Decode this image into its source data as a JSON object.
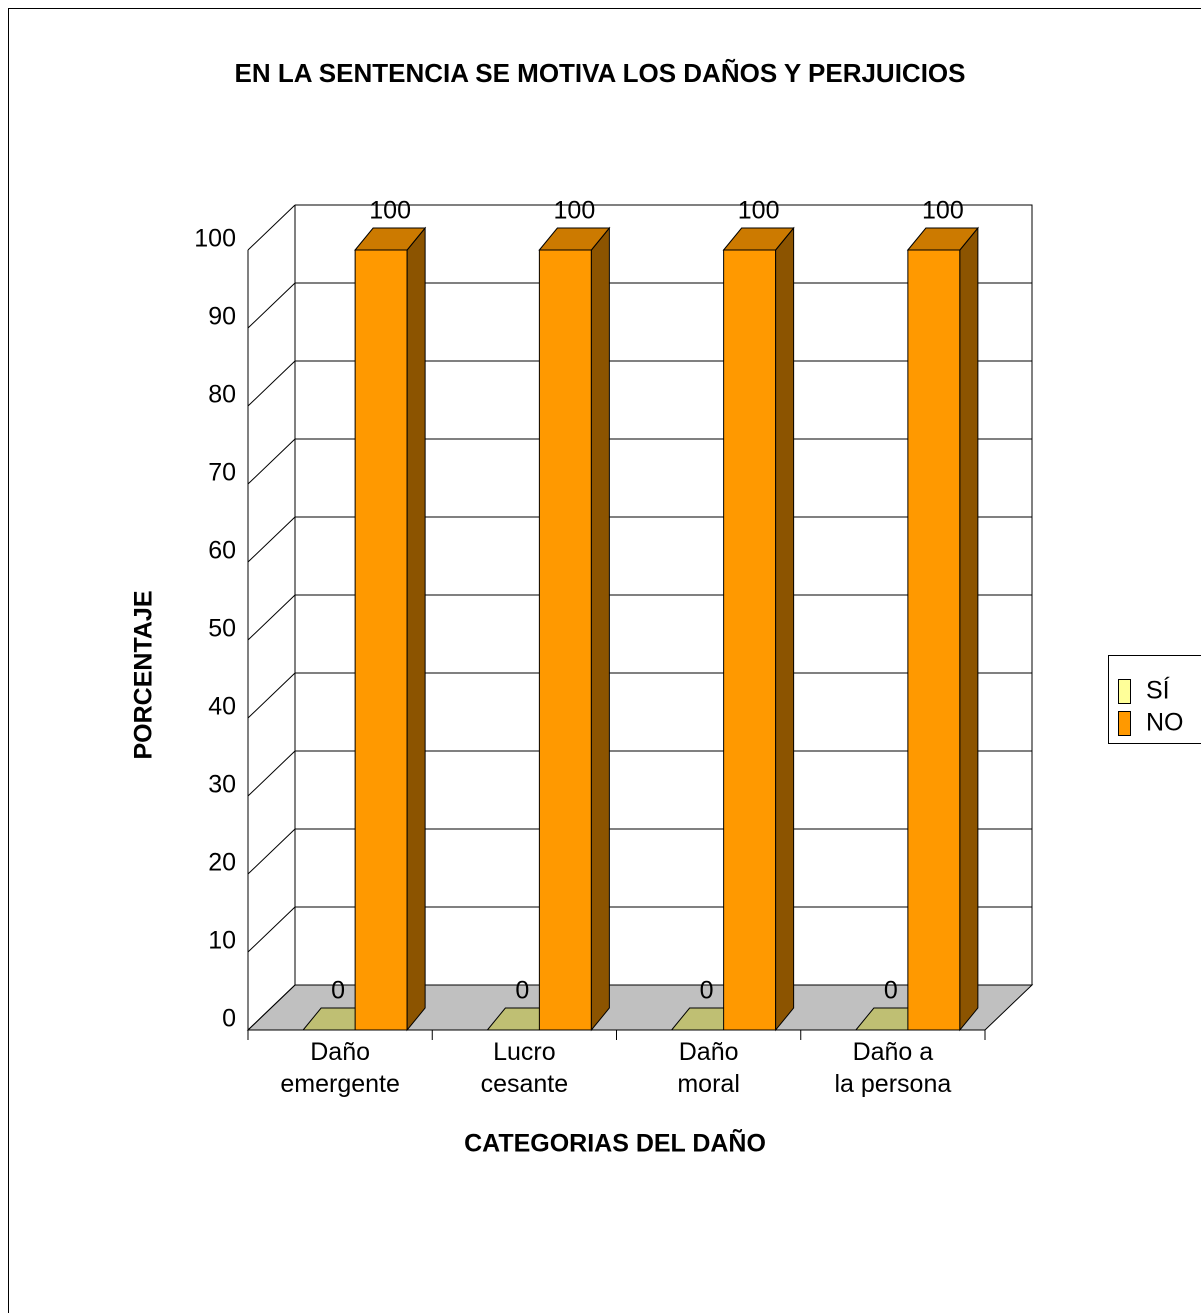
{
  "chart_data": {
    "type": "bar3d",
    "title": "EN LA SENTENCIA SE MOTIVA LOS DAÑOS Y PERJUICIOS",
    "x_label": "CATEGORIAS DEL DAÑO",
    "y_label": "PORCENTAJE",
    "categories": [
      "Daño\nemergente",
      "Lucro\ncesante",
      "Daño\nmoral",
      "Daño a\nla persona"
    ],
    "series": [
      {
        "name": "SÍ",
        "color": "#ffff99",
        "values": [
          0,
          0,
          0,
          0
        ]
      },
      {
        "name": "NO",
        "color": "#ff9900",
        "values": [
          100,
          100,
          100,
          100
        ]
      }
    ],
    "ylim": [
      0,
      100
    ],
    "yticks": [
      0,
      10,
      20,
      30,
      40,
      50,
      60,
      70,
      80,
      90,
      100
    ],
    "grid": true,
    "legend": "right"
  }
}
